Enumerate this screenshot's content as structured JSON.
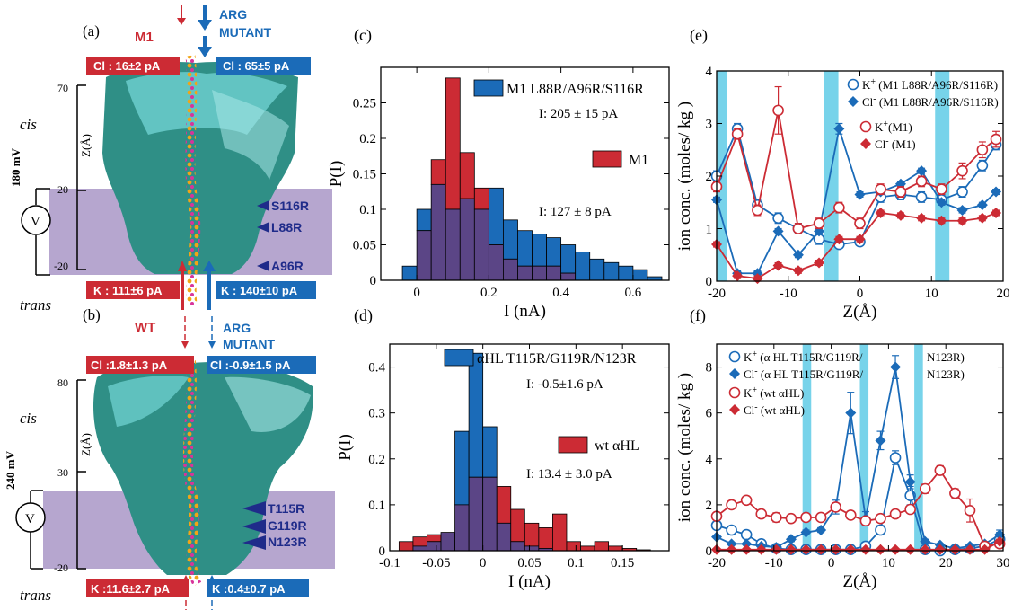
{
  "colors": {
    "red": "#cc2b34",
    "blue": "#1b6bb8",
    "purple": "#5b4586",
    "navy": "#1f2b8a",
    "teal": "#2f8f86",
    "lavender": "#b6a6cf",
    "cyanBar": "#5fcbe6"
  },
  "panelA": {
    "letter": "(a)",
    "title_left": "M1",
    "title_right": [
      "ARG",
      "MUTANT"
    ],
    "cl_left": "Cl : 16±2 pA",
    "cl_right": "Cl : 65±5 pA",
    "k_left": "K : 111±6 pA",
    "k_right": "K : 140±10 pA",
    "cis": "cis",
    "trans": "trans",
    "voltage": "180 mV",
    "v": "V",
    "zlabel": "Z(Å)",
    "zticks": [
      "70",
      "20",
      "-20"
    ],
    "residues": [
      "S116R",
      "L88R",
      "A96R"
    ]
  },
  "panelB": {
    "letter": "(b)",
    "title_left": "WT",
    "title_right": [
      "ARG",
      "MUTANT"
    ],
    "cl_left": "Cl :1.8±1.3 pA",
    "cl_right": "Cl :-0.9±1.5 pA",
    "k_left": "K :11.6±2.7 pA",
    "k_right": "K :0.4±0.7 pA",
    "cis": "cis",
    "trans": "trans",
    "voltage": "240 mV",
    "v": "V",
    "zlabel": "Z(Å)",
    "zticks": [
      "80",
      "30",
      "-20"
    ],
    "residues": [
      "T115R",
      "G119R",
      "N123R"
    ]
  },
  "chart_data": [
    {
      "id": "c",
      "type": "bar",
      "letter": "(c)",
      "xlabel": "I (nA)",
      "ylabel": "P(I)",
      "xlim": [
        -0.1,
        0.7
      ],
      "ylim": [
        0,
        0.3
      ],
      "xticks": [
        0,
        0.2,
        0.4,
        0.6
      ],
      "xtick_labels": [
        "0",
        "0.2",
        "0.4",
        "0.6"
      ],
      "yticks": [
        0,
        0.05,
        0.1,
        0.15,
        0.2,
        0.25
      ],
      "ytick_labels": [
        "0",
        "0.05",
        "0.1",
        "0.15",
        "0.2",
        "0.25"
      ],
      "bin_width": 0.04,
      "bin_centers": [
        -0.02,
        0.02,
        0.06,
        0.1,
        0.14,
        0.18,
        0.22,
        0.26,
        0.3,
        0.34,
        0.38,
        0.42,
        0.46,
        0.5,
        0.54,
        0.58,
        0.62,
        0.66
      ],
      "series": [
        {
          "name": "M1 L88R/A96R/S116R",
          "color": "#1b6bb8",
          "annotation": "I: 205 ± 15 pA",
          "values": [
            0.02,
            0.1,
            0.135,
            0.1,
            0.115,
            0.1,
            0.13,
            0.085,
            0.07,
            0.065,
            0.06,
            0.05,
            0.04,
            0.03,
            0.025,
            0.02,
            0.015,
            0.005
          ]
        },
        {
          "name": "M1",
          "color": "#cc2b34",
          "annotation": "I: 127 ± 8 pA",
          "values": [
            0,
            0.07,
            0.17,
            0.285,
            0.18,
            0.13,
            0.05,
            0.03,
            0.02,
            0.02,
            0.02,
            0.01,
            0,
            0,
            0,
            0,
            0,
            0
          ]
        }
      ]
    },
    {
      "id": "d",
      "type": "bar",
      "letter": "(d)",
      "xlabel": "I (nA)",
      "ylabel": "P(I)",
      "xlim": [
        -0.1,
        0.2
      ],
      "ylim": [
        0,
        0.45
      ],
      "xticks": [
        -0.1,
        -0.05,
        0,
        0.05,
        0.1,
        0.15
      ],
      "xtick_labels": [
        "-0.1",
        "-0.05",
        "0",
        "0.05",
        "0.1",
        "0.15"
      ],
      "yticks": [
        0,
        0.1,
        0.2,
        0.3,
        0.4
      ],
      "ytick_labels": [
        "0",
        "0.1",
        "0.2",
        "0.3",
        "0.4"
      ],
      "bin_width": 0.015,
      "bin_centers": [
        -0.0825,
        -0.0675,
        -0.0525,
        -0.0375,
        -0.0225,
        -0.0075,
        0.0075,
        0.0225,
        0.0375,
        0.0525,
        0.0675,
        0.0825,
        0.0975,
        0.1125,
        0.1275,
        0.1425,
        0.1575,
        0.1725
      ],
      "series": [
        {
          "name": "αHL T115R/G119R/N123R",
          "color": "#1b6bb8",
          "annotation": "I:  -0.5±1.6 pA",
          "values": [
            0,
            0.01,
            0.02,
            0.04,
            0.26,
            0.43,
            0.27,
            0.06,
            0.02,
            0.01,
            0.005,
            0,
            0,
            0,
            0,
            0,
            0,
            0
          ]
        },
        {
          "name": "wt  αHL",
          "color": "#cc2b34",
          "annotation": "I: 13.4 ± 3.0 pA",
          "values": [
            0.02,
            0.03,
            0.035,
            0.04,
            0.1,
            0.16,
            0.16,
            0.14,
            0.09,
            0.06,
            0.05,
            0.08,
            0.02,
            0.01,
            0.02,
            0.01,
            0.005,
            0.002
          ]
        }
      ]
    },
    {
      "id": "e",
      "type": "line",
      "letter": "(e)",
      "xlabel": "Z(Å)",
      "ylabel": "ion conc. (moles/ kg )",
      "xlim": [
        -20,
        20
      ],
      "ylim": [
        0,
        4
      ],
      "xticks": [
        -20,
        -10,
        0,
        10,
        20
      ],
      "xtick_labels": [
        "-20",
        "-10",
        "0",
        "10",
        "20"
      ],
      "yticks": [
        0,
        1,
        2,
        3,
        4
      ],
      "ytick_labels": [
        "0",
        "1",
        "2",
        "3",
        "4"
      ],
      "highlight_ranges": [
        [
          -20.5,
          -18.5
        ],
        [
          -5,
          -3
        ],
        [
          10.5,
          12.5
        ]
      ],
      "x": [
        -20,
        -17.1,
        -14.3,
        -11.4,
        -8.6,
        -5.7,
        -2.9,
        0,
        2.9,
        5.7,
        8.6,
        11.4,
        14.3,
        17.1,
        19
      ],
      "series": [
        {
          "name": "K+ (M1 L88R/A96R/S116R)",
          "color": "#1b6bb8",
          "marker": "circle-open",
          "values": [
            2.0,
            2.9,
            1.45,
            1.2,
            1.0,
            0.8,
            0.7,
            0.75,
            1.6,
            1.65,
            1.6,
            1.55,
            1.7,
            2.2,
            2.6
          ],
          "err": [
            0.1,
            0.1,
            0.1,
            0.1,
            0.1,
            0.1,
            0.05,
            0.05,
            0.1,
            0.1,
            0.1,
            0.1,
            0.1,
            0.1,
            0.1
          ]
        },
        {
          "name": "Cl- (M1 L88R/A96R/S116R)",
          "color": "#1b6bb8",
          "marker": "diamond-filled",
          "values": [
            1.55,
            0.15,
            0.15,
            0.95,
            0.5,
            0.95,
            2.9,
            1.65,
            1.7,
            1.85,
            2.1,
            1.5,
            1.35,
            1.45,
            1.7
          ],
          "err": [
            0.05,
            0.05,
            0.05,
            0.05,
            0.05,
            0.05,
            0.1,
            0.05,
            0.05,
            0.05,
            0.05,
            0.05,
            0.05,
            0.05,
            0.05
          ]
        },
        {
          "name": "K+(M1)",
          "color": "#cc2b34",
          "marker": "circle-open",
          "values": [
            1.8,
            2.8,
            1.35,
            3.25,
            1.0,
            1.1,
            1.4,
            1.1,
            1.75,
            1.7,
            1.9,
            1.75,
            2.1,
            2.5,
            2.7
          ],
          "err": [
            0.1,
            0.1,
            0.1,
            0.45,
            0.1,
            0.1,
            0.1,
            0.1,
            0.1,
            0.1,
            0.1,
            0.1,
            0.15,
            0.15,
            0.15
          ]
        },
        {
          "name": "Cl- (M1)",
          "color": "#cc2b34",
          "marker": "diamond-filled",
          "values": [
            0.7,
            0.1,
            0.05,
            0.3,
            0.2,
            0.35,
            0.8,
            0.8,
            1.3,
            1.25,
            1.2,
            1.15,
            1.15,
            1.2,
            1.3
          ],
          "err": [
            0.05,
            0.05,
            0.05,
            0.05,
            0.05,
            0.05,
            0.05,
            0.05,
            0.05,
            0.05,
            0.05,
            0.05,
            0.05,
            0.05,
            0.05
          ]
        }
      ]
    },
    {
      "id": "f",
      "type": "line",
      "letter": "(f)",
      "xlabel": "Z(Å)",
      "ylabel": "ion conc. (moles/ kg )",
      "xlim": [
        -20,
        30
      ],
      "ylim": [
        0,
        9
      ],
      "xticks": [
        -20,
        -10,
        0,
        10,
        20,
        30
      ],
      "xtick_labels": [
        "-20",
        "-10",
        "0",
        "10",
        "20",
        "30"
      ],
      "yticks": [
        0,
        2,
        4,
        6,
        8
      ],
      "ytick_labels": [
        "0",
        "2",
        "4",
        "6",
        "8"
      ],
      "highlight_ranges": [
        [
          -5,
          -3.5
        ],
        [
          5,
          6.5
        ],
        [
          14.5,
          16
        ]
      ],
      "x": [
        -20,
        -17.4,
        -14.8,
        -12.2,
        -9.6,
        -7,
        -4.4,
        -1.8,
        0.8,
        3.4,
        6,
        8.6,
        11.2,
        13.8,
        16.4,
        19,
        21.6,
        24.2,
        26.8,
        29.4
      ],
      "series": [
        {
          "name": "K+ (α HL T115R/G119R/N123R)",
          "color": "#1b6bb8",
          "marker": "circle-open",
          "values": [
            1.1,
            0.9,
            0.7,
            0.3,
            0.1,
            0.05,
            0.05,
            0.05,
            0.05,
            0.05,
            0.2,
            0.9,
            4.05,
            2.4,
            0.05,
            0.0,
            0.05,
            0.1,
            0.2,
            0.5
          ],
          "err": [
            0.1,
            0.1,
            0.1,
            0.1,
            0.05,
            0.05,
            0.05,
            0.05,
            0.05,
            0.05,
            0.1,
            0.2,
            0.3,
            0.4,
            0.05,
            0.05,
            0.05,
            0.05,
            0.1,
            0.3
          ]
        },
        {
          "name": "Cl- (α HL T115R/G119R/N123R)",
          "color": "#1b6bb8",
          "marker": "diamond-filled",
          "values": [
            0.6,
            0.3,
            0.3,
            0.2,
            0.15,
            0.5,
            0.8,
            0.9,
            1.9,
            6.0,
            1.4,
            4.8,
            8.0,
            3.0,
            0.4,
            0.25,
            0.1,
            0.2,
            0.3,
            0.7
          ],
          "err": [
            0.05,
            0.05,
            0.05,
            0.05,
            0.05,
            0.1,
            0.1,
            0.1,
            0.3,
            0.9,
            0.3,
            0.4,
            0.5,
            0.3,
            0.1,
            0.05,
            0.05,
            0.05,
            0.1,
            0.2
          ]
        },
        {
          "name": "K+ (wt αHL)",
          "color": "#cc2b34",
          "marker": "circle-open",
          "values": [
            1.5,
            2.0,
            2.2,
            1.6,
            1.45,
            1.4,
            1.45,
            1.45,
            1.9,
            1.55,
            1.3,
            1.4,
            1.6,
            1.8,
            2.7,
            3.5,
            2.5,
            1.75,
            0.2,
            0.3
          ],
          "err": [
            0.1,
            0.1,
            0.1,
            0.1,
            0.2,
            0.1,
            0.1,
            0.1,
            0.1,
            0.1,
            0.1,
            0.1,
            0.1,
            0.1,
            0.2,
            0.2,
            0.2,
            0.5,
            0.1,
            0.1
          ]
        },
        {
          "name": "Cl- (wt αHL)",
          "color": "#cc2b34",
          "marker": "diamond-filled",
          "values": [
            0.05,
            0.05,
            0.05,
            0.05,
            0.05,
            0.05,
            0.05,
            0.05,
            0.05,
            0.05,
            0.05,
            0.05,
            0.05,
            0.05,
            0.05,
            0.05,
            0.05,
            0.05,
            0.05,
            0.4
          ],
          "err": [
            0,
            0,
            0,
            0,
            0,
            0,
            0,
            0,
            0,
            0,
            0,
            0,
            0,
            0,
            0,
            0,
            0,
            0,
            0,
            0.1
          ]
        }
      ]
    }
  ],
  "legendE": [
    [
      "K",
      "+",
      " (M1 L88R/A96R/S116R)"
    ],
    [
      "Cl",
      "-",
      " (M1 L88R/A96R/S116R)"
    ],
    [
      "K",
      "+",
      "(M1)"
    ],
    [
      "Cl",
      "-",
      " (M1)"
    ]
  ],
  "legendF": [
    [
      "K",
      "+",
      " (α HL T115R/G119R/",
      "N123R)"
    ],
    [
      "Cl",
      "-",
      " (α HL T115R/G119R/",
      "N123R)"
    ],
    [
      "K",
      "+",
      " (wt αHL)",
      ""
    ],
    [
      "Cl",
      "-",
      " (wt αHL)",
      ""
    ]
  ]
}
